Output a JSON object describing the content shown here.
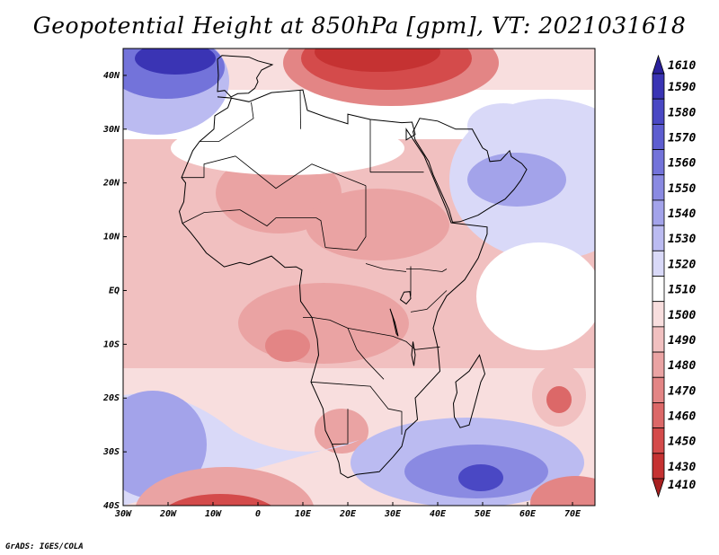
{
  "header": {
    "title": "Geopotential Height at 850hPa [gpm], VT: 2021031618"
  },
  "footer": {
    "credit": "GrADS: IGES/COLA"
  },
  "map": {
    "extent": {
      "lon_min": -30,
      "lon_max": 75,
      "lat_min": -40,
      "lat_max": 45
    },
    "lon_ticks": [
      {
        "value": -30,
        "label": "30W"
      },
      {
        "value": -20,
        "label": "20W"
      },
      {
        "value": -10,
        "label": "10W"
      },
      {
        "value": 0,
        "label": "0"
      },
      {
        "value": 10,
        "label": "10E"
      },
      {
        "value": 20,
        "label": "20E"
      },
      {
        "value": 30,
        "label": "30E"
      },
      {
        "value": 40,
        "label": "40E"
      },
      {
        "value": 50,
        "label": "50E"
      },
      {
        "value": 60,
        "label": "60E"
      },
      {
        "value": 70,
        "label": "70E"
      }
    ],
    "lat_ticks": [
      {
        "value": 40,
        "label": "40N"
      },
      {
        "value": 30,
        "label": "30N"
      },
      {
        "value": 20,
        "label": "20N"
      },
      {
        "value": 10,
        "label": "10N"
      },
      {
        "value": 0,
        "label": "EQ"
      },
      {
        "value": -10,
        "label": "10S"
      },
      {
        "value": -20,
        "label": "20S"
      },
      {
        "value": -30,
        "label": "30S"
      },
      {
        "value": -40,
        "label": "40S"
      }
    ],
    "coastline_lonlat": [
      [
        -9,
        36
      ],
      [
        -6,
        35.8
      ],
      [
        -2,
        35.1
      ],
      [
        3,
        36.8
      ],
      [
        10,
        37.3
      ],
      [
        11,
        33.5
      ],
      [
        15,
        32.3
      ],
      [
        20,
        31
      ],
      [
        20,
        32.8
      ],
      [
        25,
        31.8
      ],
      [
        32,
        31.2
      ],
      [
        34.3,
        31.3
      ],
      [
        35,
        29
      ],
      [
        33,
        28
      ],
      [
        33,
        30
      ],
      [
        37,
        25
      ],
      [
        39,
        21
      ],
      [
        42,
        15
      ],
      [
        43,
        12.6
      ],
      [
        51,
        11.8
      ],
      [
        51,
        10.5
      ],
      [
        49,
        6
      ],
      [
        46,
        2
      ],
      [
        42,
        -1
      ],
      [
        40,
        -4
      ],
      [
        39,
        -7
      ],
      [
        40,
        -10.5
      ],
      [
        40.5,
        -15
      ],
      [
        35,
        -20
      ],
      [
        35.5,
        -24
      ],
      [
        32.9,
        -26
      ],
      [
        32,
        -29
      ],
      [
        30,
        -31
      ],
      [
        27,
        -33.7
      ],
      [
        22,
        -34.2
      ],
      [
        20,
        -34.8
      ],
      [
        18.4,
        -34
      ],
      [
        18,
        -32
      ],
      [
        16.5,
        -28.6
      ],
      [
        15,
        -26
      ],
      [
        14.5,
        -22
      ],
      [
        11.8,
        -17
      ],
      [
        13.5,
        -12
      ],
      [
        13.2,
        -9
      ],
      [
        12,
        -5
      ],
      [
        9.5,
        -2
      ],
      [
        9.3,
        1
      ],
      [
        9.8,
        3.8
      ],
      [
        8.5,
        4.4
      ],
      [
        6,
        4.3
      ],
      [
        3,
        6.4
      ],
      [
        -2,
        4.8
      ],
      [
        -4,
        5.2
      ],
      [
        -7.5,
        4.4
      ],
      [
        -11.5,
        7
      ],
      [
        -13.3,
        9
      ],
      [
        -15,
        10.8
      ],
      [
        -16.8,
        12.5
      ],
      [
        -17.5,
        14.7
      ],
      [
        -16.5,
        16.5
      ],
      [
        -16.1,
        20
      ],
      [
        -17,
        21
      ],
      [
        -14.5,
        26
      ],
      [
        -13,
        27.7
      ],
      [
        -9.8,
        30
      ],
      [
        -9.6,
        32.5
      ],
      [
        -6.7,
        34
      ],
      [
        -5.9,
        35.8
      ],
      [
        -9,
        36
      ]
    ],
    "iberia_lonlat": [
      [
        -9,
        37
      ],
      [
        -8.8,
        40
      ],
      [
        -9,
        43
      ],
      [
        -8,
        43.7
      ],
      [
        -2,
        43.4
      ],
      [
        0,
        42.7
      ],
      [
        3.2,
        42
      ],
      [
        0.8,
        41
      ],
      [
        -0.3,
        39.5
      ],
      [
        0,
        38.8
      ],
      [
        -0.7,
        37.6
      ],
      [
        -2.1,
        36.7
      ],
      [
        -4.5,
        36.6
      ],
      [
        -6,
        36
      ],
      [
        -7.4,
        37.2
      ],
      [
        -9,
        37
      ]
    ],
    "arabia_lonlat": [
      [
        34.5,
        29.5
      ],
      [
        35,
        28
      ],
      [
        38,
        24
      ],
      [
        39,
        21.5
      ],
      [
        42.5,
        15
      ],
      [
        43.3,
        12.7
      ],
      [
        45,
        12.8
      ],
      [
        49,
        14
      ],
      [
        52,
        15.6
      ],
      [
        55,
        17
      ],
      [
        57,
        18.8
      ],
      [
        58.5,
        20.5
      ],
      [
        59.8,
        22.5
      ],
      [
        58.7,
        23.6
      ],
      [
        56.4,
        24.9
      ],
      [
        56,
        26
      ],
      [
        54,
        24.2
      ],
      [
        51.6,
        24
      ],
      [
        51,
        26
      ],
      [
        50,
        26.5
      ],
      [
        48,
        29.5
      ],
      [
        47.7,
        30
      ],
      [
        44,
        30
      ],
      [
        40,
        31.5
      ],
      [
        36,
        32
      ],
      [
        34.5,
        29.5
      ]
    ],
    "madagascar_lonlat": [
      [
        49.3,
        -12
      ],
      [
        50.5,
        -15.5
      ],
      [
        49.6,
        -17
      ],
      [
        48,
        -22
      ],
      [
        47,
        -25
      ],
      [
        45,
        -25.5
      ],
      [
        43.7,
        -23.5
      ],
      [
        43.5,
        -21
      ],
      [
        44.3,
        -19
      ],
      [
        44,
        -17
      ],
      [
        47,
        -15
      ],
      [
        49.3,
        -12
      ]
    ],
    "borders_lonlat": [
      [
        [
          25,
          22
        ],
        [
          25,
          31.8
        ]
      ],
      [
        [
          25,
          22
        ],
        [
          36.9,
          22
        ]
      ],
      [
        [
          9.5,
          30
        ],
        [
          9.4,
          37.2
        ]
      ],
      [
        [
          -8.7,
          27.7
        ],
        [
          -1,
          32
        ],
        [
          -1.5,
          35
        ]
      ],
      [
        [
          -13,
          27.7
        ],
        [
          -8.7,
          27.7
        ]
      ],
      [
        [
          -17,
          21
        ],
        [
          -12,
          21
        ],
        [
          -12,
          23.5
        ],
        [
          -5,
          25
        ]
      ],
      [
        [
          -5,
          25
        ],
        [
          4,
          19
        ],
        [
          12,
          23.5
        ],
        [
          24,
          19.5
        ]
      ],
      [
        [
          24,
          19.5
        ],
        [
          24,
          10
        ],
        [
          22,
          7.5
        ],
        [
          15,
          8
        ]
      ],
      [
        [
          15,
          8
        ],
        [
          14,
          13
        ],
        [
          13,
          13.5
        ],
        [
          4,
          13.5
        ],
        [
          2,
          12
        ],
        [
          -4,
          15
        ]
      ],
      [
        [
          -4,
          15
        ],
        [
          -12,
          14.5
        ],
        [
          -16.8,
          12.5
        ]
      ],
      [
        [
          10,
          -5
        ],
        [
          12,
          -5
        ],
        [
          16,
          -5.5
        ],
        [
          20,
          -7
        ],
        [
          30,
          -8.5
        ]
      ],
      [
        [
          30,
          -8.5
        ],
        [
          33,
          -9.5
        ],
        [
          35,
          -11
        ],
        [
          40.5,
          -10.5
        ]
      ],
      [
        [
          20,
          -7
        ],
        [
          22,
          -11
        ],
        [
          24,
          -13
        ],
        [
          28,
          -16.5
        ]
      ],
      [
        [
          11.8,
          -17
        ],
        [
          20,
          -17.5
        ],
        [
          25,
          -17.8
        ],
        [
          29,
          -22
        ],
        [
          32,
          -22.5
        ],
        [
          32,
          -26.8
        ]
      ],
      [
        [
          20,
          -22
        ],
        [
          20,
          -28.5
        ],
        [
          16.5,
          -28.6
        ]
      ],
      [
        [
          34,
          -4
        ],
        [
          37.6,
          -3.5
        ],
        [
          42,
          0
        ]
      ],
      [
        [
          33,
          4
        ],
        [
          36,
          4
        ],
        [
          41,
          3.5
        ],
        [
          42,
          4
        ]
      ],
      [
        [
          34,
          -1
        ],
        [
          34,
          4.5
        ]
      ],
      [
        [
          24,
          5
        ],
        [
          28,
          4
        ],
        [
          33,
          3.5
        ]
      ]
    ],
    "lakes_lonlat": [
      [
        [
          32.5,
          -0.3
        ],
        [
          33.8,
          -0.2
        ],
        [
          34,
          -1.5
        ],
        [
          33,
          -2.5
        ],
        [
          31.7,
          -1.7
        ],
        [
          32.5,
          -0.3
        ]
      ],
      [
        [
          29.4,
          -3.4
        ],
        [
          30,
          -5
        ],
        [
          30.8,
          -8
        ],
        [
          31.2,
          -8.5
        ],
        [
          30.5,
          -6
        ],
        [
          29.4,
          -3.4
        ]
      ],
      [
        [
          34.5,
          -9.5
        ],
        [
          35,
          -12
        ],
        [
          34.7,
          -14
        ],
        [
          34.2,
          -12
        ],
        [
          34.5,
          -9.5
        ]
      ]
    ]
  },
  "colorbar": {
    "levels": [
      {
        "label": "1610",
        "color": "#2b219c"
      },
      {
        "label": "1590",
        "color": "#3a34b4"
      },
      {
        "label": "1580",
        "color": "#4a48c4"
      },
      {
        "label": "1570",
        "color": "#5d5dd0"
      },
      {
        "label": "1560",
        "color": "#7373da"
      },
      {
        "label": "1550",
        "color": "#8a8ae2"
      },
      {
        "label": "1540",
        "color": "#a3a3ea"
      },
      {
        "label": "1530",
        "color": "#bbbbf1"
      },
      {
        "label": "1520",
        "color": "#d9d9f8"
      },
      {
        "label": "1510",
        "color": "#ffffff"
      },
      {
        "label": "1500",
        "color": "#f8dede"
      },
      {
        "label": "1490",
        "color": "#f1c0c0"
      },
      {
        "label": "1480",
        "color": "#eaa3a3"
      },
      {
        "label": "1470",
        "color": "#e38585"
      },
      {
        "label": "1460",
        "color": "#dc6868"
      },
      {
        "label": "1450",
        "color": "#d44b4b"
      },
      {
        "label": "1430",
        "color": "#c53232"
      },
      {
        "label": "1410",
        "color": "#a82020"
      }
    ]
  }
}
